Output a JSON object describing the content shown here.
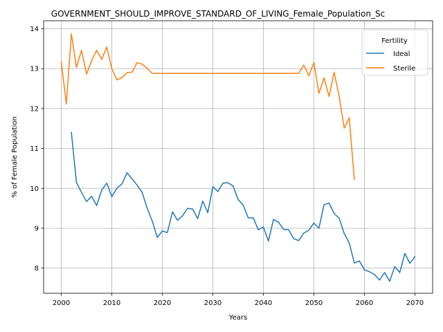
{
  "chart_data": {
    "type": "line",
    "title": "GOVERNMENT_SHOULD_IMPROVE_STANDARD_OF_LIVING_Female_Population_Sc",
    "xlabel": "Years",
    "ylabel": "% of Female Population",
    "xlim": [
      1996.5,
      2073.5
    ],
    "ylim": [
      7.37,
      14.2
    ],
    "xticks": [
      2000,
      2010,
      2020,
      2030,
      2040,
      2050,
      2060,
      2070
    ],
    "yticks": [
      8,
      9,
      10,
      11,
      12,
      13,
      14
    ],
    "grid": true,
    "legend": {
      "title": "Fertility",
      "placement": "top-right"
    },
    "series": [
      {
        "name": "Ideal",
        "color": "#1f77b4",
        "x": [
          2002,
          2003,
          2004,
          2005,
          2006,
          2007,
          2008,
          2009,
          2010,
          2011,
          2012,
          2013,
          2014,
          2015,
          2016,
          2017,
          2018,
          2019,
          2020,
          2021,
          2022,
          2023,
          2024,
          2025,
          2026,
          2027,
          2028,
          2029,
          2030,
          2031,
          2032,
          2033,
          2034,
          2035,
          2036,
          2037,
          2038,
          2039,
          2040,
          2041,
          2042,
          2043,
          2044,
          2045,
          2046,
          2047,
          2048,
          2049,
          2050,
          2051,
          2052,
          2053,
          2054,
          2055,
          2056,
          2057,
          2058,
          2059,
          2060,
          2061,
          2062,
          2063,
          2064,
          2065,
          2066,
          2067,
          2068,
          2069,
          2070
        ],
        "values": [
          11.4,
          10.15,
          9.9,
          9.67,
          9.8,
          9.57,
          9.96,
          10.13,
          9.79,
          10.0,
          10.11,
          10.39,
          10.24,
          10.08,
          9.9,
          9.5,
          9.18,
          8.77,
          8.93,
          8.89,
          9.41,
          9.2,
          9.31,
          9.5,
          9.48,
          9.24,
          9.68,
          9.39,
          10.04,
          9.92,
          10.13,
          10.14,
          10.06,
          9.72,
          9.58,
          9.26,
          9.26,
          8.96,
          9.03,
          8.68,
          9.22,
          9.15,
          8.97,
          8.96,
          8.74,
          8.69,
          8.88,
          8.95,
          9.13,
          9.0,
          9.59,
          9.63,
          9.37,
          9.25,
          8.87,
          8.63,
          8.13,
          8.18,
          7.96,
          7.91,
          7.84,
          7.7,
          7.89,
          7.67,
          8.04,
          7.89,
          8.37,
          8.12,
          8.29
        ]
      },
      {
        "name": "Sterile",
        "color": "#ff7f0e",
        "x": [
          2000,
          2001,
          2002,
          2003,
          2004,
          2005,
          2006,
          2007,
          2008,
          2009,
          2010,
          2011,
          2012,
          2013,
          2014,
          2015,
          2016,
          2017,
          2018,
          2019,
          2020,
          2021,
          2022,
          2023,
          2024,
          2025,
          2026,
          2027,
          2028,
          2029,
          2030,
          2031,
          2032,
          2033,
          2034,
          2035,
          2036,
          2037,
          2038,
          2039,
          2040,
          2041,
          2042,
          2043,
          2044,
          2045,
          2046,
          2047,
          2048,
          2049,
          2050,
          2051,
          2052,
          2053,
          2054,
          2055,
          2056,
          2057,
          2058
        ],
        "values": [
          13.17,
          12.11,
          13.87,
          13.03,
          13.46,
          12.86,
          13.2,
          13.46,
          13.23,
          13.54,
          13.0,
          12.72,
          12.77,
          12.9,
          12.91,
          13.15,
          13.11,
          13.01,
          12.88,
          12.88,
          12.88,
          12.88,
          12.88,
          12.88,
          12.88,
          12.88,
          12.88,
          12.88,
          12.88,
          12.88,
          12.88,
          12.88,
          12.88,
          12.88,
          12.88,
          12.88,
          12.88,
          12.88,
          12.88,
          12.88,
          12.88,
          12.88,
          12.88,
          12.88,
          12.88,
          12.88,
          12.88,
          12.88,
          13.09,
          12.82,
          13.15,
          12.38,
          12.77,
          12.3,
          12.91,
          12.31,
          11.51,
          11.77,
          10.22
        ]
      }
    ]
  }
}
